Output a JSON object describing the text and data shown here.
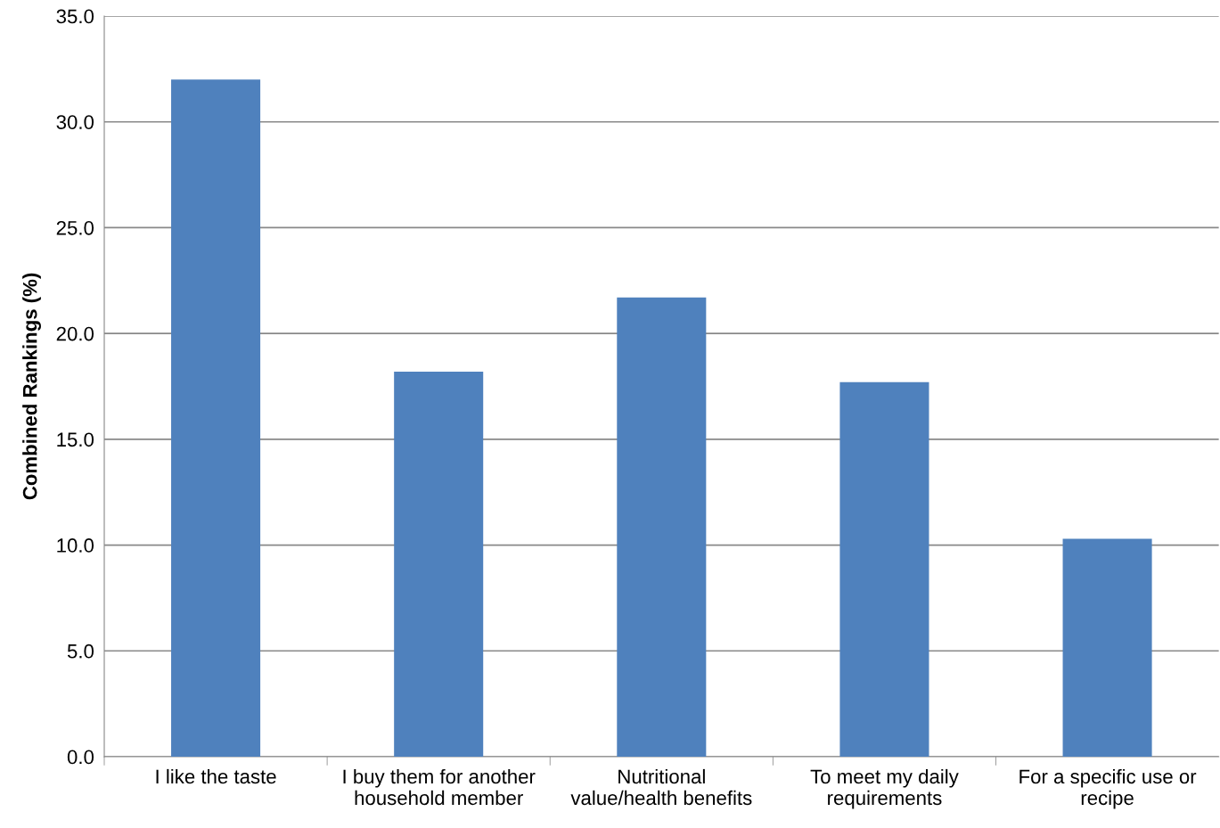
{
  "chart_data": {
    "type": "bar",
    "ylabel": "Combined Rankings (%)",
    "categories": [
      "I like the taste",
      "I buy them for another\nhousehold member",
      "Nutritional\nvalue/health benefits",
      "To meet my daily\nrequirements",
      "For a specific use or\nrecipe"
    ],
    "values": [
      32.0,
      18.2,
      21.7,
      17.7,
      10.3
    ],
    "color": "#4f81bd",
    "ylim": [
      0,
      35
    ],
    "yticks": [
      {
        "value": 0,
        "label": "0.0"
      },
      {
        "value": 5,
        "label": "5.0"
      },
      {
        "value": 10,
        "label": "10.0"
      },
      {
        "value": 15,
        "label": "15.0"
      },
      {
        "value": 20,
        "label": "20.0"
      },
      {
        "value": 25,
        "label": "25.0"
      },
      {
        "value": 30,
        "label": "30.0"
      },
      {
        "value": 35,
        "label": "35.0"
      }
    ],
    "grid": "y",
    "legend": false
  }
}
